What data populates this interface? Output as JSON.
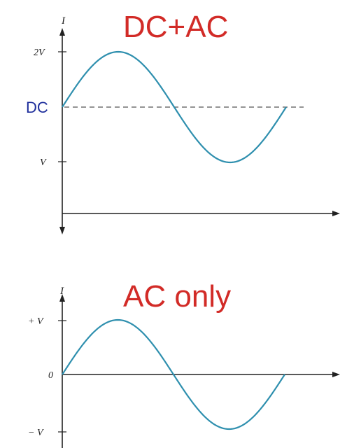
{
  "top_panel": {
    "title": "DC+AC",
    "axis_name": "I",
    "ticks": {
      "upper": "2V",
      "middle": "DC",
      "lower": "V"
    },
    "colors": {
      "title": "#d22b27",
      "dc_label": "#1f2f9c",
      "wave": "#2e8fae"
    }
  },
  "bottom_panel": {
    "title": "AC only",
    "axis_name": "I",
    "ticks": {
      "upper": "+ V",
      "middle": "0",
      "lower": "− V"
    },
    "colors": {
      "title": "#d22b27",
      "wave": "#2e8fae"
    }
  }
}
